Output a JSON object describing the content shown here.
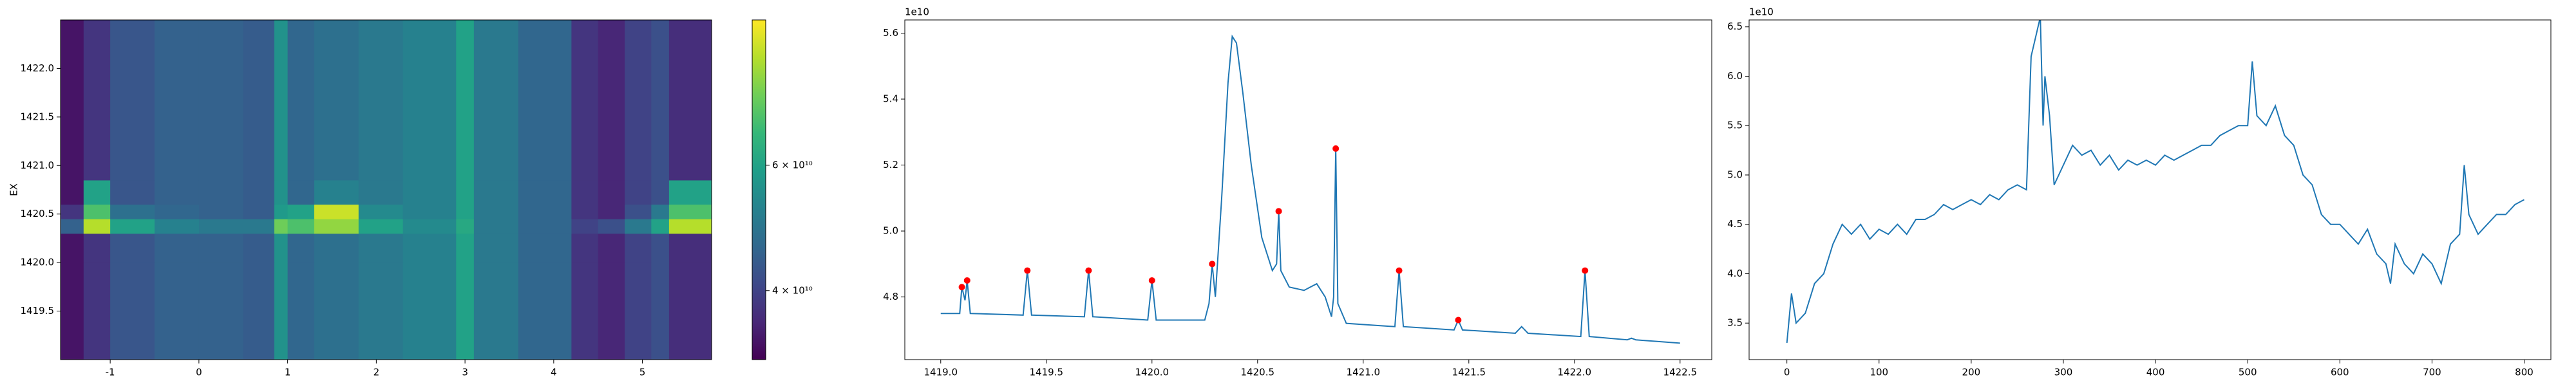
{
  "chart_data": [
    {
      "type": "heatmap",
      "ylabel": "EX",
      "x_edges": [
        -1.56,
        -1.3,
        -1.0,
        -0.5,
        0.0,
        0.5,
        0.85,
        1.0,
        1.3,
        1.8,
        2.3,
        2.9,
        3.1,
        3.6,
        4.2,
        4.5,
        4.8,
        5.1,
        5.3,
        5.78
      ],
      "y_edges": [
        1419.0,
        1420.0,
        1420.3,
        1420.45,
        1420.6,
        1420.85,
        1422.5
      ],
      "z": [
        [
          34000000000.0,
          38000000000.0,
          43000000000.0,
          45000000000.0,
          45000000000.0,
          44000000000.0,
          56000000000.0,
          46000000000.0,
          48000000000.0,
          50000000000.0,
          52000000000.0,
          60000000000.0,
          50000000000.0,
          46000000000.0,
          38000000000.0,
          36000000000.0,
          40000000000.0,
          42000000000.0,
          37000000000.0
        ],
        [
          34000000000.0,
          38000000000.0,
          43000000000.0,
          45000000000.0,
          45000000000.0,
          44000000000.0,
          56000000000.0,
          46000000000.0,
          48000000000.0,
          50000000000.0,
          52000000000.0,
          60000000000.0,
          50000000000.0,
          46000000000.0,
          38000000000.0,
          36000000000.0,
          40000000000.0,
          42000000000.0,
          37000000000.0
        ],
        [
          45000000000.0,
          85000000000.0,
          60000000000.0,
          52000000000.0,
          50000000000.0,
          50000000000.0,
          75000000000.0,
          70000000000.0,
          80000000000.0,
          60000000000.0,
          54000000000.0,
          62000000000.0,
          50000000000.0,
          46000000000.0,
          40000000000.0,
          42000000000.0,
          50000000000.0,
          60000000000.0,
          85000000000.0
        ],
        [
          38000000000.0,
          70000000000.0,
          48000000000.0,
          46000000000.0,
          45000000000.0,
          44000000000.0,
          58000000000.0,
          60000000000.0,
          88000000000.0,
          54000000000.0,
          52000000000.0,
          60000000000.0,
          50000000000.0,
          46000000000.0,
          38000000000.0,
          36000000000.0,
          42000000000.0,
          50000000000.0,
          70000000000.0
        ],
        [
          34000000000.0,
          60000000000.0,
          43000000000.0,
          45000000000.0,
          45000000000.0,
          44000000000.0,
          56000000000.0,
          46000000000.0,
          52000000000.0,
          50000000000.0,
          52000000000.0,
          60000000000.0,
          50000000000.0,
          46000000000.0,
          38000000000.0,
          36000000000.0,
          40000000000.0,
          42000000000.0,
          60000000000.0
        ],
        [
          34000000000.0,
          38000000000.0,
          43000000000.0,
          45000000000.0,
          45000000000.0,
          44000000000.0,
          56000000000.0,
          46000000000.0,
          48000000000.0,
          50000000000.0,
          52000000000.0,
          60000000000.0,
          50000000000.0,
          46000000000.0,
          38000000000.0,
          36000000000.0,
          40000000000.0,
          42000000000.0,
          37000000000.0
        ]
      ],
      "colormap": "viridis",
      "color_scale": "log",
      "clim": [
        32000000000.0,
        96000000000.0
      ],
      "colorbar_ticks": [
        {
          "value": 40000000000.0,
          "label": "4 × 10¹⁰"
        },
        {
          "value": 60000000000.0,
          "label": "6 × 10¹⁰"
        }
      ],
      "xlim": [
        -1.56,
        5.78
      ],
      "ylim": [
        1419.0,
        1422.5
      ],
      "xticks": [
        -1,
        0,
        1,
        2,
        3,
        4,
        5
      ],
      "yticks": [
        1419.5,
        {
          "value": 1420,
          "label": "1420.0"
        },
        1420.5,
        {
          "value": 1421,
          "label": "1421.0"
        },
        1421.5,
        {
          "value": 1422,
          "label": "1422.0"
        }
      ]
    },
    {
      "type": "line",
      "y_offset_label": "1e10",
      "x": [
        1419.0,
        1419.09,
        1419.1,
        1419.115,
        1419.125,
        1419.14,
        1419.39,
        1419.41,
        1419.43,
        1419.68,
        1419.7,
        1419.72,
        1419.98,
        1420.0,
        1420.02,
        1420.25,
        1420.27,
        1420.285,
        1420.3,
        1420.33,
        1420.36,
        1420.38,
        1420.4,
        1420.43,
        1420.47,
        1420.52,
        1420.57,
        1420.59,
        1420.6,
        1420.61,
        1420.65,
        1420.72,
        1420.78,
        1420.82,
        1420.85,
        1420.86,
        1420.87,
        1420.88,
        1420.92,
        1421.15,
        1421.17,
        1421.19,
        1421.43,
        1421.45,
        1421.47,
        1421.72,
        1421.75,
        1421.78,
        1422.03,
        1422.05,
        1422.07,
        1422.25,
        1422.27,
        1422.29,
        1422.5
      ],
      "series": [
        {
          "color": "#1f77b4",
          "values": [
            4.75,
            4.75,
            4.83,
            4.79,
            4.85,
            4.75,
            4.745,
            4.88,
            4.745,
            4.74,
            4.88,
            4.74,
            4.73,
            4.85,
            4.73,
            4.73,
            4.78,
            4.9,
            4.8,
            5.1,
            5.45,
            5.59,
            5.57,
            5.42,
            5.2,
            4.98,
            4.88,
            4.9,
            5.06,
            4.88,
            4.83,
            4.82,
            4.84,
            4.8,
            4.74,
            4.8,
            5.25,
            4.78,
            4.72,
            4.71,
            4.88,
            4.71,
            4.7,
            4.73,
            4.7,
            4.69,
            4.71,
            4.69,
            4.68,
            4.88,
            4.68,
            4.67,
            4.675,
            4.67,
            4.66
          ]
        }
      ],
      "markers": {
        "color": "#ff0000",
        "x": [
          1419.1,
          1419.125,
          1419.41,
          1419.7,
          1420.0,
          1420.285,
          1420.6,
          1420.87,
          1421.17,
          1421.45,
          1422.05
        ],
        "values": [
          4.83,
          4.85,
          4.88,
          4.88,
          4.85,
          4.9,
          5.06,
          5.25,
          4.88,
          4.73,
          4.88
        ]
      },
      "xlim": [
        1418.83,
        1422.65
      ],
      "ylim": [
        4.61,
        5.64
      ],
      "xticks": [
        {
          "value": 1419,
          "label": "1419.0"
        },
        1419.5,
        {
          "value": 1420,
          "label": "1420.0"
        },
        1420.5,
        {
          "value": 1421,
          "label": "1421.0"
        },
        1421.5,
        {
          "value": 1422,
          "label": "1422.0"
        },
        1422.5
      ],
      "yticks": [
        4.8,
        {
          "value": 5,
          "label": "5.0"
        },
        5.2,
        5.4,
        5.6
      ]
    },
    {
      "type": "line",
      "y_offset_label": "1e10",
      "x": [
        0,
        5,
        10,
        20,
        30,
        40,
        50,
        60,
        70,
        80,
        90,
        100,
        110,
        120,
        130,
        140,
        150,
        160,
        170,
        180,
        190,
        200,
        210,
        220,
        230,
        240,
        250,
        260,
        265,
        270,
        275,
        278,
        280,
        285,
        290,
        300,
        310,
        320,
        330,
        340,
        350,
        360,
        370,
        380,
        390,
        400,
        410,
        420,
        430,
        440,
        450,
        460,
        470,
        480,
        490,
        500,
        505,
        510,
        520,
        530,
        540,
        550,
        560,
        570,
        580,
        590,
        600,
        610,
        620,
        630,
        640,
        650,
        655,
        660,
        670,
        680,
        690,
        700,
        710,
        720,
        730,
        735,
        740,
        750,
        760,
        770,
        780,
        790,
        800
      ],
      "series": [
        {
          "color": "#1f77b4",
          "values": [
            3.3,
            3.8,
            3.5,
            3.6,
            3.9,
            4.0,
            4.3,
            4.5,
            4.4,
            4.5,
            4.35,
            4.45,
            4.4,
            4.5,
            4.4,
            4.55,
            4.55,
            4.6,
            4.7,
            4.65,
            4.7,
            4.75,
            4.7,
            4.8,
            4.75,
            4.85,
            4.9,
            4.85,
            6.2,
            6.4,
            6.6,
            5.5,
            6.0,
            5.6,
            4.9,
            5.1,
            5.3,
            5.2,
            5.25,
            5.1,
            5.2,
            5.05,
            5.15,
            5.1,
            5.15,
            5.1,
            5.2,
            5.15,
            5.2,
            5.25,
            5.3,
            5.3,
            5.4,
            5.45,
            5.5,
            5.5,
            6.15,
            5.6,
            5.5,
            5.7,
            5.4,
            5.3,
            5.0,
            4.9,
            4.6,
            4.5,
            4.5,
            4.4,
            4.3,
            4.45,
            4.2,
            4.1,
            3.9,
            4.3,
            4.1,
            4.0,
            4.2,
            4.1,
            3.9,
            4.3,
            4.4,
            5.1,
            4.6,
            4.4,
            4.5,
            4.6,
            4.6,
            4.7,
            4.75
          ]
        }
      ],
      "xlim": [
        -41,
        829
      ],
      "ylim": [
        3.13,
        6.57
      ],
      "xticks": [
        0,
        100,
        200,
        300,
        400,
        500,
        600,
        700,
        800
      ],
      "yticks": [
        3.5,
        {
          "value": 4,
          "label": "4.0"
        },
        4.5,
        {
          "value": 5,
          "label": "5.0"
        },
        5.5,
        {
          "value": 6,
          "label": "6.0"
        },
        6.5
      ]
    }
  ]
}
